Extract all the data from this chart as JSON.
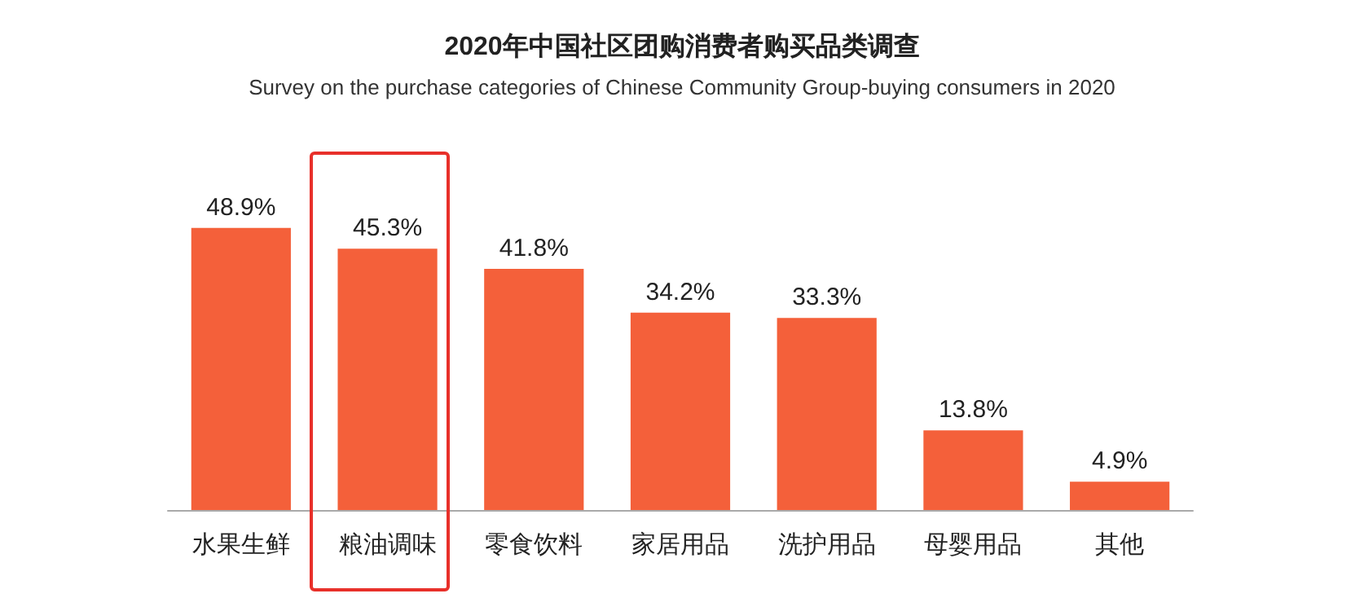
{
  "chart_data": {
    "type": "bar",
    "title": "2020年中国社区团购消费者购买品类调查",
    "subtitle": "Survey on the purchase categories of Chinese Community Group-buying consumers in 2020",
    "categories": [
      "水果生鲜",
      "粮油调味",
      "零食饮料",
      "家居用品",
      "洗护用品",
      "母婴用品",
      "其他"
    ],
    "values": [
      48.9,
      45.3,
      41.8,
      34.2,
      33.3,
      13.8,
      4.9
    ],
    "value_labels": [
      "48.9%",
      "45.3%",
      "41.8%",
      "34.2%",
      "33.3%",
      "13.8%",
      "4.9%"
    ],
    "color": "#f4603a"
  }
}
